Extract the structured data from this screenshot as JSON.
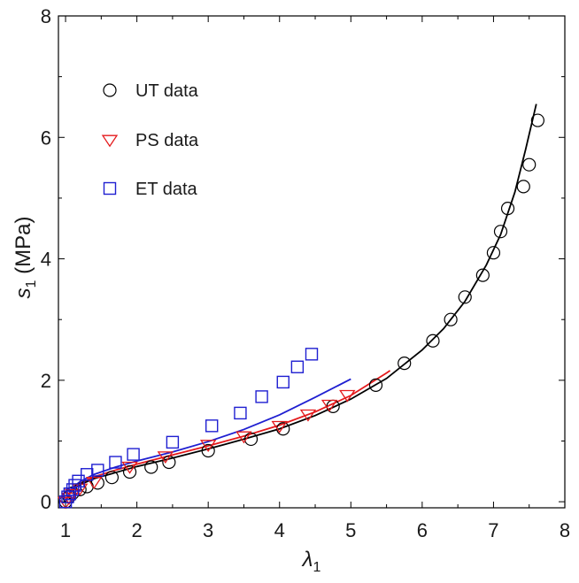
{
  "chart_data": {
    "type": "scatter",
    "title": "",
    "xlabel": "λ",
    "xlabel_sub": "1",
    "ylabel_pre": "s",
    "ylabel_sub": "1",
    "ylabel_post": " (MPa)",
    "xlim": [
      0.9,
      8.0
    ],
    "ylim": [
      -0.1,
      8.0
    ],
    "xticks": [
      "1",
      "2",
      "3",
      "4",
      "5",
      "6",
      "7",
      "8"
    ],
    "yticks": [
      "0",
      "2",
      "4",
      "6",
      "8"
    ],
    "grid": false,
    "legend_position": "top-left",
    "series": [
      {
        "name": "UT data",
        "marker": "circle",
        "color": "#000000",
        "points": [
          [
            1.0,
            0.0
          ],
          [
            1.05,
            0.08
          ],
          [
            1.1,
            0.14
          ],
          [
            1.2,
            0.2
          ],
          [
            1.3,
            0.25
          ],
          [
            1.45,
            0.31
          ],
          [
            1.65,
            0.4
          ],
          [
            1.9,
            0.49
          ],
          [
            2.2,
            0.57
          ],
          [
            2.45,
            0.65
          ],
          [
            3.0,
            0.84
          ],
          [
            3.6,
            1.03
          ],
          [
            4.05,
            1.2
          ],
          [
            4.75,
            1.57
          ],
          [
            5.35,
            1.92
          ],
          [
            5.75,
            2.28
          ],
          [
            6.15,
            2.65
          ],
          [
            6.4,
            3.0
          ],
          [
            6.6,
            3.37
          ],
          [
            6.85,
            3.73
          ],
          [
            7.0,
            4.1
          ],
          [
            7.1,
            4.45
          ],
          [
            7.2,
            4.83
          ],
          [
            7.42,
            5.19
          ],
          [
            7.5,
            5.55
          ],
          [
            7.62,
            6.28
          ]
        ]
      },
      {
        "name": "PS data",
        "marker": "triangle-down",
        "color": "#e41a1c",
        "points": [
          [
            1.0,
            0.0
          ],
          [
            1.05,
            0.07
          ],
          [
            1.1,
            0.13
          ],
          [
            1.2,
            0.22
          ],
          [
            1.4,
            0.33
          ],
          [
            1.9,
            0.58
          ],
          [
            2.4,
            0.75
          ],
          [
            3.0,
            0.94
          ],
          [
            3.5,
            1.08
          ],
          [
            4.0,
            1.25
          ],
          [
            4.4,
            1.44
          ],
          [
            4.7,
            1.6
          ],
          [
            4.95,
            1.76
          ]
        ]
      },
      {
        "name": "ET data",
        "marker": "square",
        "color": "#1f1fd1",
        "points": [
          [
            1.0,
            0.0
          ],
          [
            1.03,
            0.08
          ],
          [
            1.06,
            0.13
          ],
          [
            1.1,
            0.2
          ],
          [
            1.13,
            0.27
          ],
          [
            1.18,
            0.34
          ],
          [
            1.3,
            0.45
          ],
          [
            1.45,
            0.52
          ],
          [
            1.7,
            0.65
          ],
          [
            1.95,
            0.78
          ],
          [
            2.5,
            0.98
          ],
          [
            3.05,
            1.25
          ],
          [
            3.45,
            1.46
          ],
          [
            3.75,
            1.73
          ],
          [
            4.05,
            1.97
          ],
          [
            4.25,
            2.22
          ],
          [
            4.45,
            2.43
          ]
        ]
      }
    ],
    "fit_curves": [
      {
        "color": "#000000",
        "points": [
          [
            1.0,
            0.0
          ],
          [
            1.05,
            0.12
          ],
          [
            1.1,
            0.2
          ],
          [
            1.2,
            0.28
          ],
          [
            1.4,
            0.38
          ],
          [
            1.7,
            0.48
          ],
          [
            2.0,
            0.58
          ],
          [
            2.5,
            0.72
          ],
          [
            3.0,
            0.87
          ],
          [
            3.5,
            1.03
          ],
          [
            4.0,
            1.2
          ],
          [
            4.5,
            1.42
          ],
          [
            5.0,
            1.69
          ],
          [
            5.5,
            2.03
          ],
          [
            6.0,
            2.5
          ],
          [
            6.3,
            2.85
          ],
          [
            6.6,
            3.3
          ],
          [
            6.9,
            3.9
          ],
          [
            7.1,
            4.4
          ],
          [
            7.3,
            5.1
          ],
          [
            7.45,
            5.8
          ],
          [
            7.55,
            6.3
          ],
          [
            7.6,
            6.55
          ]
        ]
      },
      {
        "color": "#e41a1c",
        "points": [
          [
            1.0,
            0.0
          ],
          [
            1.05,
            0.13
          ],
          [
            1.1,
            0.21
          ],
          [
            1.2,
            0.3
          ],
          [
            1.4,
            0.41
          ],
          [
            1.7,
            0.52
          ],
          [
            2.0,
            0.62
          ],
          [
            2.5,
            0.77
          ],
          [
            3.0,
            0.92
          ],
          [
            3.5,
            1.08
          ],
          [
            4.0,
            1.26
          ],
          [
            4.5,
            1.48
          ],
          [
            5.0,
            1.75
          ],
          [
            5.5,
            2.12
          ],
          [
            5.55,
            2.16
          ]
        ]
      },
      {
        "color": "#1f1fd1",
        "points": [
          [
            1.0,
            0.0
          ],
          [
            1.05,
            0.14
          ],
          [
            1.1,
            0.23
          ],
          [
            1.2,
            0.33
          ],
          [
            1.4,
            0.45
          ],
          [
            1.7,
            0.57
          ],
          [
            2.0,
            0.67
          ],
          [
            2.5,
            0.82
          ],
          [
            3.0,
            0.99
          ],
          [
            3.5,
            1.19
          ],
          [
            4.0,
            1.43
          ],
          [
            4.5,
            1.72
          ],
          [
            5.0,
            2.02
          ]
        ]
      }
    ]
  }
}
